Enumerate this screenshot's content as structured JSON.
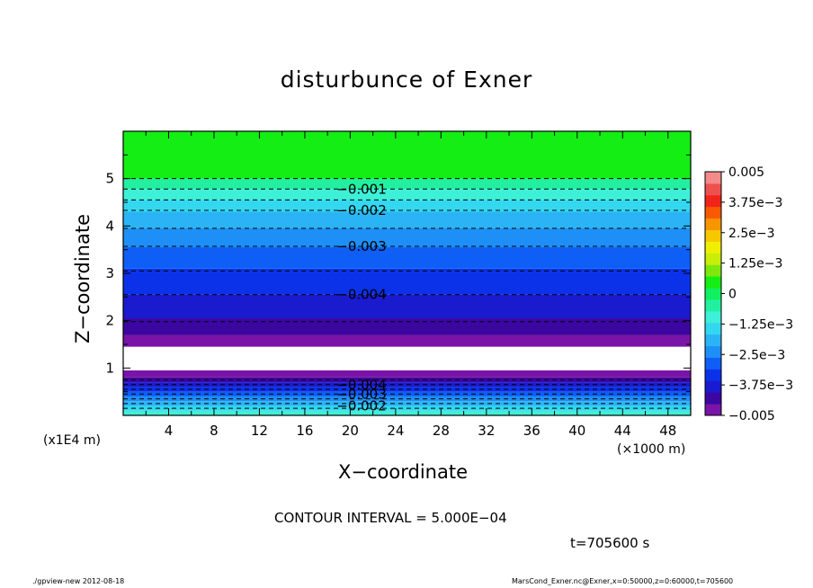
{
  "chart_data": {
    "type": "heatmap",
    "title": "disturbunce of Exner",
    "xlabel": "X−coordinate",
    "ylabel": "Z−coordinate",
    "x_unit_label": "(×1000 m)",
    "y_unit_label": "(x1E4 m)",
    "xlim": [
      0,
      50
    ],
    "ylim": [
      0,
      6
    ],
    "x_ticks": [
      4,
      8,
      12,
      16,
      20,
      24,
      28,
      32,
      36,
      40,
      44,
      48
    ],
    "y_ticks": [
      1,
      2,
      3,
      4,
      5
    ],
    "colorbar": {
      "ticks": [
        "0.005",
        "3.75e−3",
        "2.5e−3",
        "1.25e−3",
        "0",
        "−1.25e−3",
        "−2.5e−3",
        "−3.75e−3",
        "−0.005"
      ],
      "colors": [
        "#7a14a8",
        "#3b07a0",
        "#1a1acf",
        "#0b32e8",
        "#0f5ef5",
        "#1e8ff7",
        "#2bb4f5",
        "#33d8f0",
        "#3ef0d8",
        "#22f0a0",
        "#10f060",
        "#14ee14",
        "#7ee80e",
        "#c8ee0a",
        "#eef000",
        "#f7c800",
        "#f79600",
        "#f75a00",
        "#f02418",
        "#ee5050",
        "#f58a8a"
      ]
    },
    "bands": [
      {
        "z0": 0.0,
        "z1": 0.1,
        "color": "#3ef0d8"
      },
      {
        "z0": 0.1,
        "z1": 0.2,
        "color": "#33d8f0"
      },
      {
        "z0": 0.2,
        "z1": 0.3,
        "color": "#2bb4f5"
      },
      {
        "z0": 0.3,
        "z1": 0.4,
        "color": "#1e8ff7"
      },
      {
        "z0": 0.4,
        "z1": 0.5,
        "color": "#0f5ef5"
      },
      {
        "z0": 0.5,
        "z1": 0.6,
        "color": "#0b32e8"
      },
      {
        "z0": 0.6,
        "z1": 0.7,
        "color": "#1a1acf"
      },
      {
        "z0": 0.7,
        "z1": 0.8,
        "color": "#3b07a0"
      },
      {
        "z0": 0.8,
        "z1": 0.95,
        "color": "#7a14a8"
      },
      {
        "z0": 0.95,
        "z1": 1.45,
        "color": "#ffffff"
      },
      {
        "z0": 1.45,
        "z1": 1.7,
        "color": "#7a14a8"
      },
      {
        "z0": 1.7,
        "z1": 2.05,
        "color": "#3b07a0"
      },
      {
        "z0": 2.05,
        "z1": 2.55,
        "color": "#1a1acf"
      },
      {
        "z0": 2.55,
        "z1": 3.1,
        "color": "#0b32e8"
      },
      {
        "z0": 3.1,
        "z1": 3.55,
        "color": "#0f5ef5"
      },
      {
        "z0": 3.55,
        "z1": 3.95,
        "color": "#1e8ff7"
      },
      {
        "z0": 3.95,
        "z1": 4.3,
        "color": "#2bb4f5"
      },
      {
        "z0": 4.3,
        "z1": 4.55,
        "color": "#33d8f0"
      },
      {
        "z0": 4.55,
        "z1": 4.78,
        "color": "#3ef0d8"
      },
      {
        "z0": 4.78,
        "z1": 5.0,
        "color": "#22f0a0"
      },
      {
        "z0": 5.0,
        "z1": 6.0,
        "color": "#14ee14"
      }
    ],
    "contours": [
      {
        "z": 0.15
      },
      {
        "z": 0.25
      },
      {
        "z": 0.35
      },
      {
        "z": 0.45
      },
      {
        "z": 0.55
      },
      {
        "z": 0.65
      },
      {
        "z": 0.75
      },
      {
        "z": 1.98
      },
      {
        "z": 2.55
      },
      {
        "z": 3.05
      },
      {
        "z": 3.57
      },
      {
        "z": 3.95
      },
      {
        "z": 4.33
      },
      {
        "z": 4.55
      },
      {
        "z": 4.78
      },
      {
        "z": 5.0
      }
    ],
    "contour_labels": [
      {
        "text": "−0.001",
        "x": 21,
        "z": 4.78
      },
      {
        "text": "−0.002",
        "x": 21,
        "z": 4.33
      },
      {
        "text": "−0.003",
        "x": 21,
        "z": 3.57
      },
      {
        "text": "−0.004",
        "x": 21,
        "z": 2.55
      },
      {
        "text": "−0.004",
        "x": 21,
        "z": 0.65
      },
      {
        "text": "−0.003",
        "x": 21,
        "z": 0.45
      },
      {
        "text": "−0.002",
        "x": 21,
        "z": 0.2
      }
    ]
  },
  "annotations": {
    "contour_interval": "CONTOUR INTERVAL = 5.000E−04",
    "time": "t=705600 s",
    "footer_left": "./gpview-new  2012-08-18",
    "footer_right": "MarsCond_Exner.nc@Exner,x=0:50000,z=0:60000,t=705600"
  }
}
